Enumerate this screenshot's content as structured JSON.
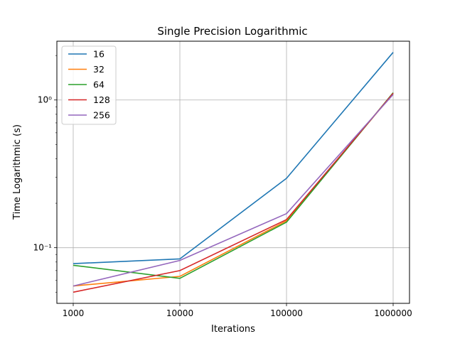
{
  "chart_data": {
    "type": "line",
    "title": "Single Precision Logarithmic",
    "xlabel": "Iterations",
    "ylabel": "Time Logarithmic (s)",
    "x": [
      1000,
      10000,
      100000,
      1000000
    ],
    "x_tick_labels": [
      "1000",
      "10000",
      "100000",
      "1000000"
    ],
    "y_scale": "log",
    "y_tick_labels": [
      "10⁻¹",
      "10⁰"
    ],
    "y_tick_values": [
      0.1,
      1
    ],
    "xlim": [
      1000,
      1000000
    ],
    "ylim": [
      0.042,
      2.5
    ],
    "grid": true,
    "legend_position": "top-left",
    "series": [
      {
        "name": "16",
        "color": "#1f77b4",
        "values": [
          0.078,
          0.084,
          0.295,
          2.1
        ]
      },
      {
        "name": "32",
        "color": "#ff7f0e",
        "values": [
          0.055,
          0.064,
          0.152,
          1.11
        ]
      },
      {
        "name": "64",
        "color": "#2ca02c",
        "values": [
          0.076,
          0.062,
          0.149,
          1.12
        ]
      },
      {
        "name": "128",
        "color": "#d62728",
        "values": [
          0.05,
          0.07,
          0.155,
          1.11
        ]
      },
      {
        "name": "256",
        "color": "#9467bd",
        "values": [
          0.055,
          0.082,
          0.17,
          1.09
        ]
      }
    ]
  }
}
